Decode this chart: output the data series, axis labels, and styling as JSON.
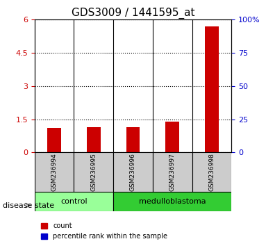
{
  "title": "GDS3009 / 1441595_at",
  "samples": [
    "GSM236994",
    "GSM236995",
    "GSM236996",
    "GSM236997",
    "GSM236998"
  ],
  "red_values": [
    1.1,
    1.15,
    1.15,
    1.4,
    5.7
  ],
  "blue_values": [
    0.04,
    0.07,
    0.06,
    0.04,
    0.18
  ],
  "ylim_left": [
    0,
    6
  ],
  "ylim_right": [
    0,
    100
  ],
  "yticks_left": [
    0,
    1.5,
    3,
    4.5,
    6
  ],
  "yticks_right": [
    0,
    25,
    50,
    75,
    100
  ],
  "ytick_labels_left": [
    "0",
    "1.5",
    "3",
    "4.5",
    "6"
  ],
  "ytick_labels_right": [
    "0",
    "25",
    "50",
    "75",
    "100%"
  ],
  "bar_width": 0.35,
  "red_color": "#cc0000",
  "blue_color": "#0000cc",
  "control_samples": [
    0,
    1
  ],
  "medulloblastoma_samples": [
    2,
    3,
    4
  ],
  "control_label": "control",
  "medulloblastoma_label": "medulloblastoma",
  "disease_state_label": "disease state",
  "legend_red": "count",
  "legend_blue": "percentile rank within the sample",
  "control_color": "#99ff99",
  "medulloblastoma_color": "#33cc33",
  "bg_color": "#cccccc",
  "grid_color": "black",
  "title_fontsize": 11,
  "tick_fontsize": 8,
  "label_fontsize": 8
}
